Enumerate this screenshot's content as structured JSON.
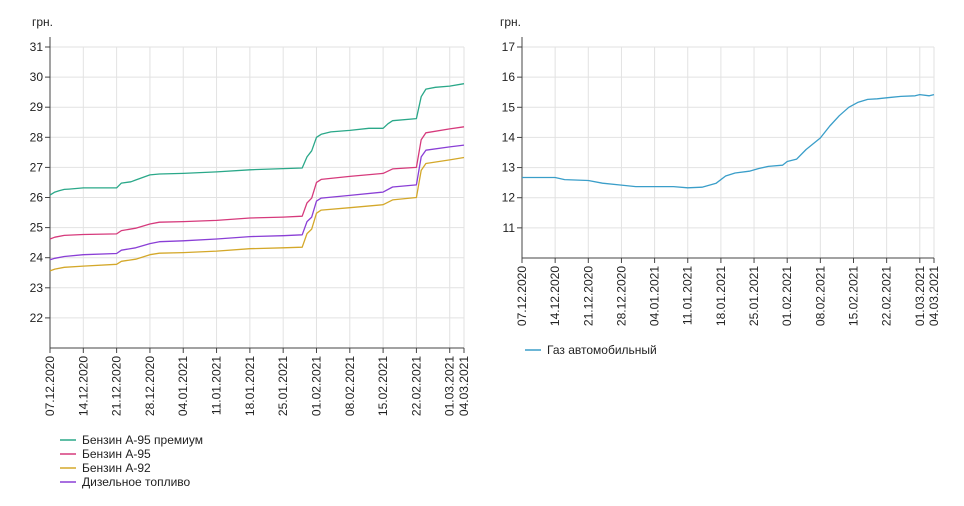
{
  "chart_data": [
    {
      "type": "line",
      "ylabel": "грн.",
      "ylim": [
        21,
        31
      ],
      "yticks": [
        22,
        23,
        24,
        25,
        26,
        27,
        28,
        29,
        30,
        31
      ],
      "x_range": [
        "2020-12-07",
        "2021-03-04"
      ],
      "xtick_labels": [
        "07.12.2020",
        "14.12.2020",
        "21.12.2020",
        "28.12.2020",
        "04.01.2021",
        "11.01.2021",
        "18.01.2021",
        "25.01.2021",
        "01.02.2021",
        "08.02.2021",
        "15.02.2021",
        "22.02.2021",
        "01.03.2021",
        "04.03.2021"
      ],
      "xtick_dates": [
        "2020-12-07",
        "2020-12-14",
        "2020-12-21",
        "2020-12-28",
        "2021-01-04",
        "2021-01-11",
        "2021-01-18",
        "2021-01-25",
        "2021-02-01",
        "2021-02-08",
        "2021-02-15",
        "2021-02-22",
        "2021-03-01",
        "2021-03-04"
      ],
      "legend_position": "bottom-left",
      "grid": "horizontal and vertical",
      "series": [
        {
          "name": "Бензин А-95 премиум",
          "color": "#2aa889",
          "points": [
            [
              "2020-12-07",
              26.08
            ],
            [
              "2020-12-08",
              26.18
            ],
            [
              "2020-12-09",
              26.23
            ],
            [
              "2020-12-10",
              26.27
            ],
            [
              "2020-12-11",
              26.28
            ],
            [
              "2020-12-14",
              26.32
            ],
            [
              "2020-12-21",
              26.32
            ],
            [
              "2020-12-22",
              26.48
            ],
            [
              "2020-12-24",
              26.52
            ],
            [
              "2020-12-25",
              26.58
            ],
            [
              "2020-12-28",
              26.75
            ],
            [
              "2020-12-30",
              26.78
            ],
            [
              "2021-01-04",
              26.8
            ],
            [
              "2021-01-11",
              26.85
            ],
            [
              "2021-01-18",
              26.92
            ],
            [
              "2021-01-25",
              26.96
            ],
            [
              "2021-01-29",
              26.98
            ],
            [
              "2021-01-30",
              27.35
            ],
            [
              "2021-01-31",
              27.55
            ],
            [
              "2021-02-01",
              28.0
            ],
            [
              "2021-02-02",
              28.1
            ],
            [
              "2021-02-04",
              28.18
            ],
            [
              "2021-02-08",
              28.23
            ],
            [
              "2021-02-12",
              28.3
            ],
            [
              "2021-02-15",
              28.3
            ],
            [
              "2021-02-16",
              28.45
            ],
            [
              "2021-02-17",
              28.55
            ],
            [
              "2021-02-22",
              28.62
            ],
            [
              "2021-02-23",
              29.35
            ],
            [
              "2021-02-24",
              29.6
            ],
            [
              "2021-02-26",
              29.66
            ],
            [
              "2021-03-01",
              29.7
            ],
            [
              "2021-03-04",
              29.78
            ]
          ]
        },
        {
          "name": "Бензин А-95",
          "color": "#d63a7c",
          "points": [
            [
              "2020-12-07",
              24.62
            ],
            [
              "2020-12-08",
              24.68
            ],
            [
              "2020-12-10",
              24.74
            ],
            [
              "2020-12-14",
              24.77
            ],
            [
              "2020-12-21",
              24.79
            ],
            [
              "2020-12-22",
              24.9
            ],
            [
              "2020-12-25",
              24.98
            ],
            [
              "2020-12-28",
              25.12
            ],
            [
              "2020-12-30",
              25.18
            ],
            [
              "2021-01-04",
              25.2
            ],
            [
              "2021-01-11",
              25.24
            ],
            [
              "2021-01-18",
              25.32
            ],
            [
              "2021-01-25",
              25.35
            ],
            [
              "2021-01-29",
              25.38
            ],
            [
              "2021-01-30",
              25.82
            ],
            [
              "2021-01-31",
              25.98
            ],
            [
              "2021-02-01",
              26.5
            ],
            [
              "2021-02-02",
              26.6
            ],
            [
              "2021-02-08",
              26.7
            ],
            [
              "2021-02-15",
              26.8
            ],
            [
              "2021-02-17",
              26.95
            ],
            [
              "2021-02-22",
              27.0
            ],
            [
              "2021-02-23",
              27.92
            ],
            [
              "2021-02-24",
              28.15
            ],
            [
              "2021-03-01",
              28.28
            ],
            [
              "2021-03-04",
              28.35
            ]
          ]
        },
        {
          "name": "Бензин А-92",
          "color": "#d4a82a",
          "points": [
            [
              "2020-12-07",
              23.56
            ],
            [
              "2020-12-08",
              23.62
            ],
            [
              "2020-12-10",
              23.68
            ],
            [
              "2020-12-14",
              23.72
            ],
            [
              "2020-12-21",
              23.78
            ],
            [
              "2020-12-22",
              23.88
            ],
            [
              "2020-12-25",
              23.95
            ],
            [
              "2020-12-28",
              24.1
            ],
            [
              "2020-12-30",
              24.15
            ],
            [
              "2021-01-04",
              24.17
            ],
            [
              "2021-01-11",
              24.22
            ],
            [
              "2021-01-18",
              24.3
            ],
            [
              "2021-01-25",
              24.33
            ],
            [
              "2021-01-29",
              24.35
            ],
            [
              "2021-01-30",
              24.8
            ],
            [
              "2021-01-31",
              24.95
            ],
            [
              "2021-02-01",
              25.48
            ],
            [
              "2021-02-02",
              25.58
            ],
            [
              "2021-02-08",
              25.66
            ],
            [
              "2021-02-15",
              25.76
            ],
            [
              "2021-02-17",
              25.92
            ],
            [
              "2021-02-22",
              26.0
            ],
            [
              "2021-02-23",
              26.9
            ],
            [
              "2021-02-24",
              27.13
            ],
            [
              "2021-03-01",
              27.25
            ],
            [
              "2021-03-04",
              27.33
            ]
          ]
        },
        {
          "name": "Дизельное топливо",
          "color": "#8a3fd6",
          "points": [
            [
              "2020-12-07",
              23.93
            ],
            [
              "2020-12-08",
              23.98
            ],
            [
              "2020-12-10",
              24.04
            ],
            [
              "2020-12-14",
              24.1
            ],
            [
              "2020-12-21",
              24.14
            ],
            [
              "2020-12-22",
              24.25
            ],
            [
              "2020-12-25",
              24.33
            ],
            [
              "2020-12-28",
              24.47
            ],
            [
              "2020-12-30",
              24.53
            ],
            [
              "2021-01-04",
              24.56
            ],
            [
              "2021-01-11",
              24.62
            ],
            [
              "2021-01-18",
              24.7
            ],
            [
              "2021-01-25",
              24.73
            ],
            [
              "2021-01-29",
              24.76
            ],
            [
              "2021-01-30",
              25.2
            ],
            [
              "2021-01-31",
              25.35
            ],
            [
              "2021-02-01",
              25.88
            ],
            [
              "2021-02-02",
              25.98
            ],
            [
              "2021-02-08",
              26.07
            ],
            [
              "2021-02-15",
              26.18
            ],
            [
              "2021-02-17",
              26.35
            ],
            [
              "2021-02-22",
              26.42
            ],
            [
              "2021-02-23",
              27.35
            ],
            [
              "2021-02-24",
              27.57
            ],
            [
              "2021-03-01",
              27.68
            ],
            [
              "2021-03-04",
              27.74
            ]
          ]
        }
      ]
    },
    {
      "type": "line",
      "ylabel": "грн.",
      "ylim": [
        10,
        17
      ],
      "yticks": [
        11,
        12,
        13,
        14,
        15,
        16,
        17
      ],
      "x_range": [
        "2020-12-07",
        "2021-03-04"
      ],
      "xtick_labels": [
        "07.12.2020",
        "14.12.2020",
        "21.12.2020",
        "28.12.2020",
        "04.01.2021",
        "11.01.2021",
        "18.01.2021",
        "25.01.2021",
        "01.02.2021",
        "08.02.2021",
        "15.02.2021",
        "22.02.2021",
        "01.03.2021",
        "04.03.2021"
      ],
      "xtick_dates": [
        "2020-12-07",
        "2020-12-14",
        "2020-12-21",
        "2020-12-28",
        "2021-01-04",
        "2021-01-11",
        "2021-01-18",
        "2021-01-25",
        "2021-02-01",
        "2021-02-08",
        "2021-02-15",
        "2021-02-22",
        "2021-03-01",
        "2021-03-04"
      ],
      "legend_position": "bottom-left",
      "grid": "horizontal and vertical",
      "series": [
        {
          "name": "Газ автомобильный",
          "color": "#3a9ec9",
          "points": [
            [
              "2020-12-07",
              12.67
            ],
            [
              "2020-12-14",
              12.67
            ],
            [
              "2020-12-16",
              12.6
            ],
            [
              "2020-12-21",
              12.57
            ],
            [
              "2020-12-24",
              12.48
            ],
            [
              "2020-12-28",
              12.42
            ],
            [
              "2020-12-31",
              12.37
            ],
            [
              "2021-01-04",
              12.37
            ],
            [
              "2021-01-08",
              12.37
            ],
            [
              "2021-01-11",
              12.33
            ],
            [
              "2021-01-14",
              12.35
            ],
            [
              "2021-01-17",
              12.48
            ],
            [
              "2021-01-19",
              12.72
            ],
            [
              "2021-01-21",
              12.82
            ],
            [
              "2021-01-24",
              12.88
            ],
            [
              "2021-01-26",
              12.97
            ],
            [
              "2021-01-28",
              13.04
            ],
            [
              "2021-01-31",
              13.08
            ],
            [
              "2021-02-01",
              13.2
            ],
            [
              "2021-02-03",
              13.28
            ],
            [
              "2021-02-05",
              13.6
            ],
            [
              "2021-02-08",
              13.98
            ],
            [
              "2021-02-10",
              14.38
            ],
            [
              "2021-02-12",
              14.72
            ],
            [
              "2021-02-14",
              15.0
            ],
            [
              "2021-02-16",
              15.17
            ],
            [
              "2021-02-18",
              15.26
            ],
            [
              "2021-02-20",
              15.28
            ],
            [
              "2021-02-23",
              15.33
            ],
            [
              "2021-02-25",
              15.36
            ],
            [
              "2021-02-28",
              15.38
            ],
            [
              "2021-03-01",
              15.42
            ],
            [
              "2021-03-03",
              15.38
            ],
            [
              "2021-03-04",
              15.42
            ]
          ]
        }
      ]
    }
  ]
}
